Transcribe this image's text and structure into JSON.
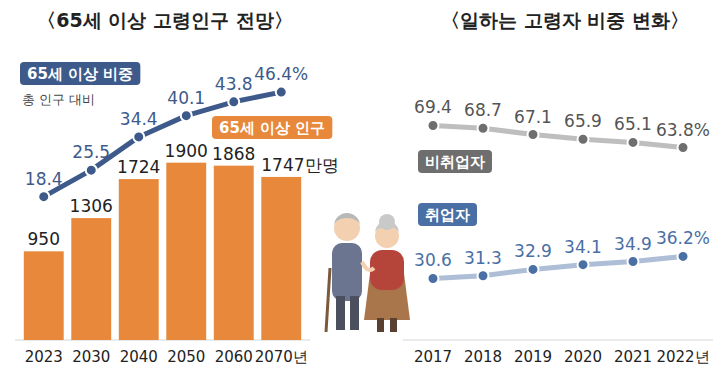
{
  "chart_data": [
    {
      "type": "bar",
      "title": "〈65세 이상 고령인구 전망〉",
      "categories": [
        "2023",
        "2030",
        "2040",
        "2050",
        "2060",
        "2070년"
      ],
      "series": [
        {
          "name": "65세 이상 인구",
          "type": "bar",
          "color": "#e8883a",
          "values": [
            950,
            1306,
            1724,
            1900,
            1868,
            1747
          ],
          "value_labels": [
            "950",
            "1306",
            "1724",
            "1900",
            "1868",
            "1747만명"
          ]
        },
        {
          "name": "65세 이상 비중",
          "type": "line",
          "axis": "y2",
          "color": "#3d5a8a",
          "marker": "circle",
          "values": [
            18.4,
            25.5,
            34.4,
            40.1,
            43.8,
            46.4
          ],
          "value_labels": [
            "18.4",
            "25.5",
            "34.4",
            "40.1",
            "43.8",
            "46.4%"
          ]
        }
      ],
      "annotation": "총 인구 대비",
      "ylim": [
        0,
        3000
      ],
      "y2lim": [
        -20,
        55
      ],
      "data_labels": true,
      "tick_labels": "x",
      "grid": false
    },
    {
      "type": "line",
      "title": "〈일하는 고령자 비중 변화〉",
      "categories": [
        "2017",
        "2018",
        "2019",
        "2020",
        "2021",
        "2022년"
      ],
      "series": [
        {
          "name": "비취업자",
          "color": "#6e6e6e",
          "marker": "circle",
          "values": [
            69.4,
            68.7,
            67.1,
            65.9,
            65.1,
            63.8
          ],
          "value_labels": [
            "69.4",
            "68.7",
            "67.1",
            "65.9",
            "65.1",
            "63.8%"
          ]
        },
        {
          "name": "취업자",
          "color": "#4a6fa5",
          "marker": "circle",
          "values": [
            30.6,
            31.3,
            32.9,
            34.1,
            34.9,
            36.2
          ],
          "value_labels": [
            "30.6",
            "31.3",
            "32.9",
            "34.1",
            "34.9",
            "36.2%"
          ]
        }
      ],
      "ylim": [
        15,
        86
      ],
      "data_labels": true,
      "tick_labels": "x",
      "grid": false
    }
  ]
}
